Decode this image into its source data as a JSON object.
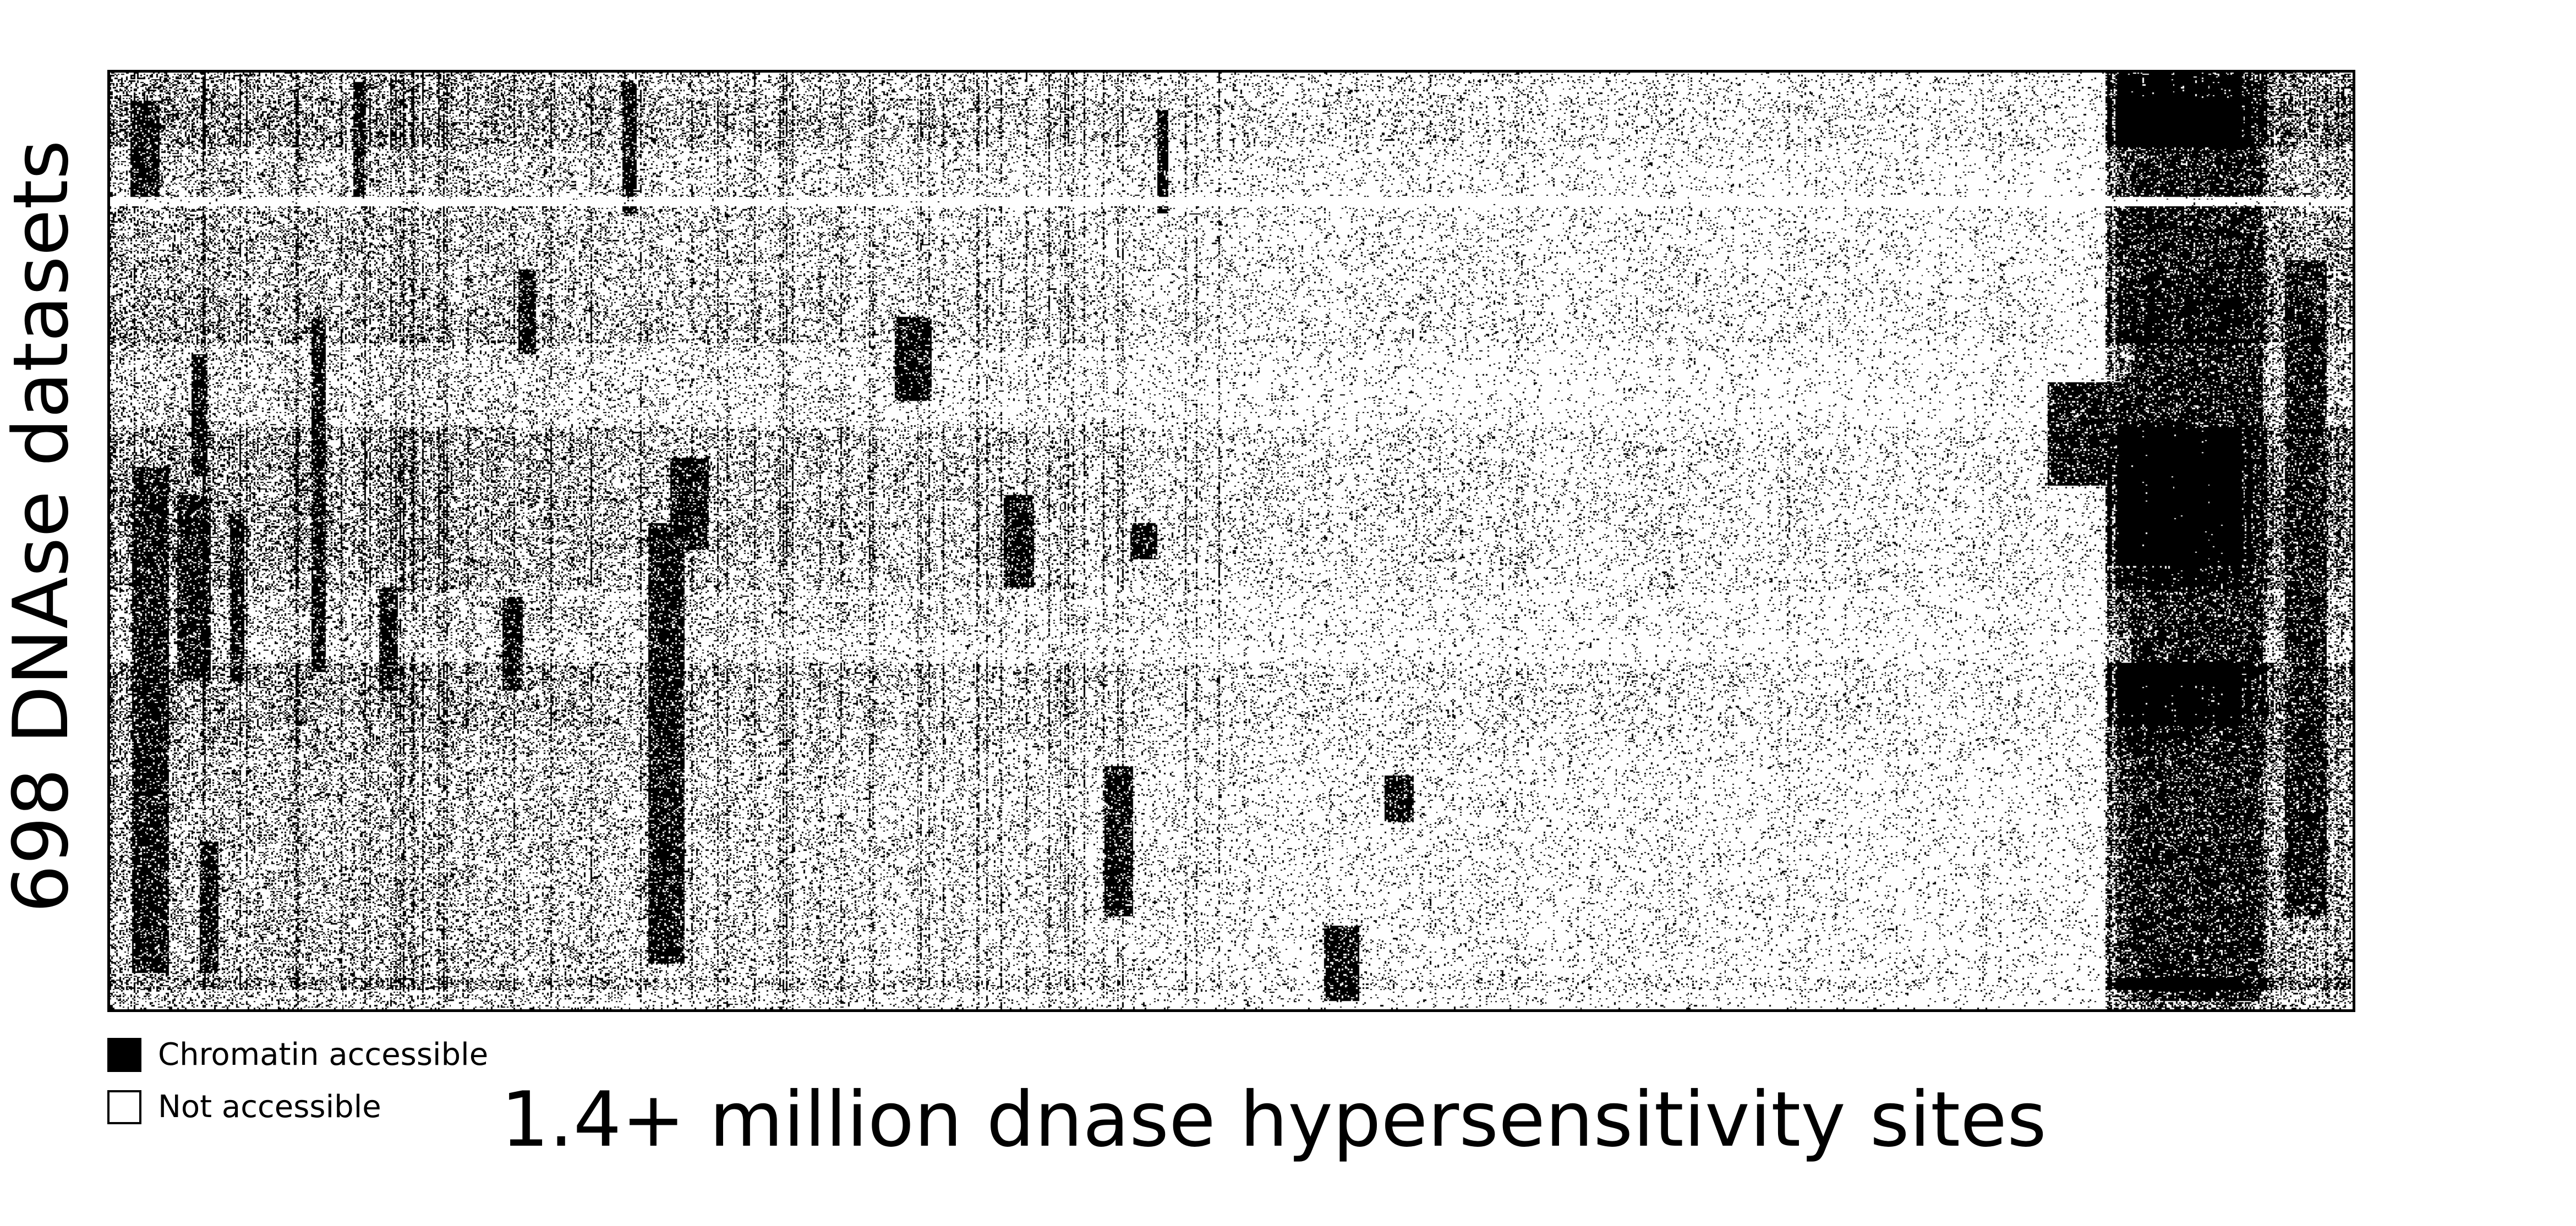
{
  "chart_data": {
    "type": "heatmap",
    "title": "",
    "xlabel": "1.4+ million dnase hypersensitivity sites",
    "ylabel": "698 DNAse datasets",
    "rows": 698,
    "columns_label": "1.4+ million",
    "binary_values": [
      1,
      0
    ],
    "colors": {
      "accessible": "#000000",
      "not_accessible": "#ffffff"
    },
    "legend": {
      "placement": "bottom-left",
      "items": [
        {
          "label": "Chromatin accessible",
          "value": 1,
          "color": "#000000"
        },
        {
          "label": "Not accessible",
          "value": 0,
          "color": "#ffffff"
        }
      ]
    },
    "grid": false,
    "ticks": false
  }
}
